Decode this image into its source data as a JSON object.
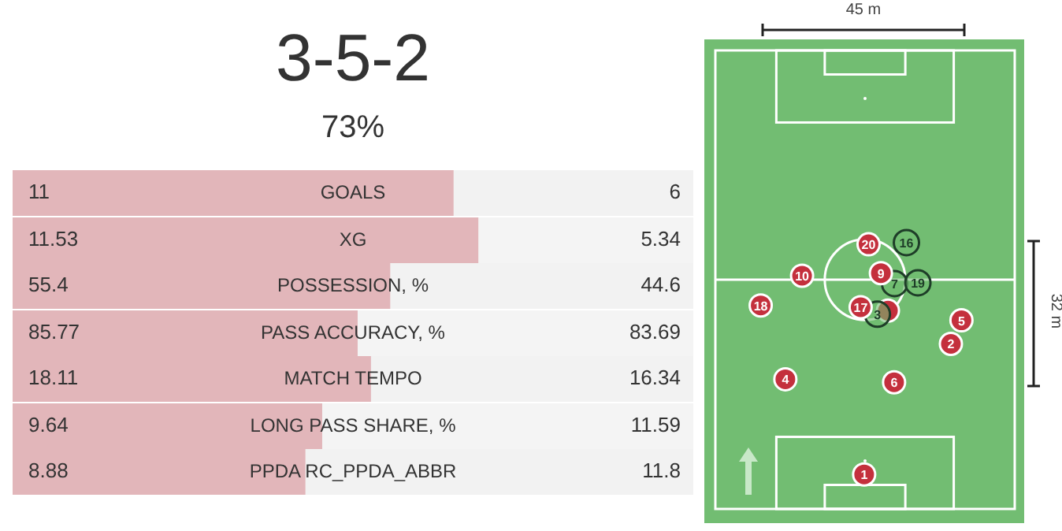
{
  "chart_data": [
    {
      "type": "other",
      "title": "3-5-2",
      "subtitle": "73%"
    },
    {
      "type": "bar",
      "orientation": "horizontal",
      "stacked": true,
      "categories": [
        "GOALS"
      ],
      "xlim": [
        0,
        17
      ],
      "tick_labels": "y",
      "data_labels": true,
      "series": [
        {
          "color": "#e2b6ba",
          "values": [
            11
          ]
        },
        {
          "color": "#f2f2f2",
          "values": [
            6
          ]
        }
      ]
    },
    {
      "type": "bar",
      "orientation": "horizontal",
      "stacked": true,
      "categories": [
        "XG"
      ],
      "xlim": [
        0,
        16.87
      ],
      "tick_labels": "y",
      "data_labels": true,
      "series": [
        {
          "color": "#e2b6ba",
          "values": [
            11.53
          ]
        },
        {
          "color": "#f4f4f4",
          "values": [
            5.34
          ]
        }
      ]
    },
    {
      "type": "bar",
      "orientation": "horizontal",
      "stacked": true,
      "categories": [
        "POSSESSION, %"
      ],
      "xlim": [
        0,
        100
      ],
      "tick_labels": "y",
      "data_labels": true,
      "series": [
        {
          "color": "#e2b6ba",
          "values": [
            55.4
          ]
        },
        {
          "color": "#f2f2f2",
          "values": [
            44.6
          ]
        }
      ]
    },
    {
      "type": "bar",
      "orientation": "horizontal",
      "stacked": true,
      "categories": [
        "PASS ACCURACY, %"
      ],
      "xlim": [
        0,
        169.46
      ],
      "tick_labels": "y",
      "data_labels": true,
      "series": [
        {
          "color": "#e2b6ba",
          "values": [
            85.77
          ]
        },
        {
          "color": "#f4f4f4",
          "values": [
            83.69
          ]
        }
      ]
    },
    {
      "type": "bar",
      "orientation": "horizontal",
      "stacked": true,
      "categories": [
        "MATCH TEMPO"
      ],
      "xlim": [
        0,
        34.45
      ],
      "tick_labels": "y",
      "data_labels": true,
      "series": [
        {
          "color": "#e2b6ba",
          "values": [
            18.11
          ]
        },
        {
          "color": "#f2f2f2",
          "values": [
            16.34
          ]
        }
      ]
    },
    {
      "type": "bar",
      "orientation": "horizontal",
      "stacked": true,
      "categories": [
        "LONG PASS SHARE, %"
      ],
      "xlim": [
        0,
        21.23
      ],
      "tick_labels": "y",
      "data_labels": true,
      "series": [
        {
          "color": "#e2b6ba",
          "values": [
            9.64
          ]
        },
        {
          "color": "#f4f4f4",
          "values": [
            11.59
          ]
        }
      ]
    },
    {
      "type": "bar",
      "orientation": "horizontal",
      "stacked": true,
      "categories": [
        "PPDA RC_PPDA_ABBR"
      ],
      "xlim": [
        0,
        20.68
      ],
      "tick_labels": "y",
      "data_labels": true,
      "series": [
        {
          "color": "#e2b6ba",
          "values": [
            8.88
          ]
        },
        {
          "color": "#f2f2f2",
          "values": [
            11.8
          ]
        }
      ]
    },
    {
      "type": "other",
      "annotations": [
        "45 m",
        "32 m",
        "1",
        "4",
        "6",
        "2",
        "5",
        "18",
        "17",
        "10",
        "9",
        "20",
        "16",
        "7",
        "19",
        "3"
      ]
    }
  ]
}
